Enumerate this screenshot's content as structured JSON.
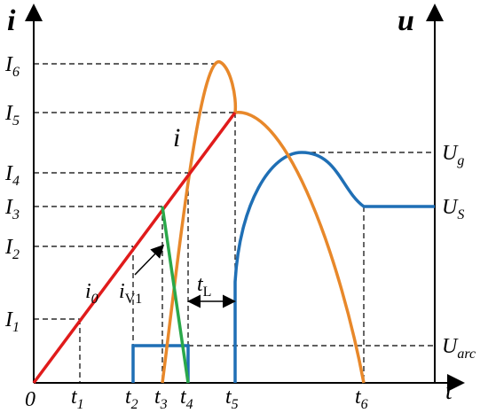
{
  "axes": {
    "left_label": "i",
    "right_label": "u",
    "x_label": "t",
    "origin": "0"
  },
  "current_levels": [
    {
      "symbol": "I",
      "subscript": "6"
    },
    {
      "symbol": "I",
      "subscript": "5"
    },
    {
      "symbol": "I",
      "subscript": "4"
    },
    {
      "symbol": "I",
      "subscript": "3"
    },
    {
      "symbol": "I",
      "subscript": "2"
    },
    {
      "symbol": "I",
      "subscript": "1"
    }
  ],
  "voltage_levels": [
    {
      "symbol": "U",
      "subscript": "g"
    },
    {
      "symbol": "U",
      "subscript": "S"
    },
    {
      "symbol": "U",
      "subscript": "arc"
    }
  ],
  "times": [
    {
      "symbol": "t",
      "subscript": "1"
    },
    {
      "symbol": "t",
      "subscript": "2"
    },
    {
      "symbol": "t",
      "subscript": "3"
    },
    {
      "symbol": "t",
      "subscript": "4"
    },
    {
      "symbol": "t",
      "subscript": "5"
    },
    {
      "symbol": "t",
      "subscript": "6"
    }
  ],
  "annotations": {
    "current": "i",
    "i0": {
      "symbol": "i",
      "subscript": "0"
    },
    "iv1": {
      "symbol": "i",
      "subscript": "V1"
    },
    "tl": {
      "symbol": "t",
      "subscript": "L"
    }
  }
}
